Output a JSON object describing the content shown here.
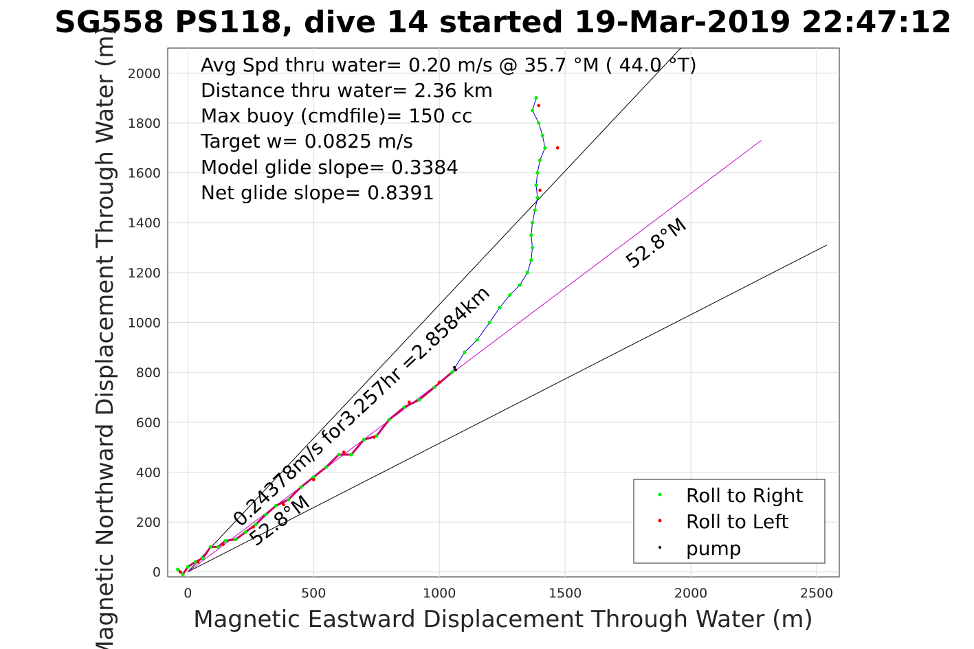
{
  "chart_data": {
    "type": "line",
    "title": "SG558 PS118, dive 14 started 19-Mar-2019 22:47:12",
    "xlabel": "Magnetic Eastward Displacement Through Water (m)",
    "ylabel": "Magnetic Northward Displacement Through Water (m)",
    "xlim": [
      -80,
      2590
    ],
    "ylim": [
      -20,
      2100
    ],
    "xticks": [
      0,
      500,
      1000,
      1500,
      2000,
      2500
    ],
    "yticks": [
      0,
      200,
      400,
      600,
      800,
      1000,
      1200,
      1400,
      1600,
      1800,
      2000
    ],
    "grid": true,
    "annotations": [
      "Avg Spd thru water=  0.20 m/s @  35.7 °M ( 44.0 °T)",
      "Distance thru water=  2.36 km",
      "Max buoy (cmdfile)= 150 cc",
      "Target w= 0.0825 m/s",
      "Model glide slope= 0.3384",
      "Net glide slope= 0.8391"
    ],
    "heading_labels": [
      "52.8°M",
      "52.8°M"
    ],
    "transit_label": "0.24378m/s for3.257hr =2.8584km",
    "reference_lines": [
      {
        "name": "course upper",
        "from": [
          0,
          0
        ],
        "to": [
          1960,
          2100
        ],
        "color": "#000000"
      },
      {
        "name": "course lower",
        "from": [
          0,
          0
        ],
        "to": [
          2540,
          1310
        ],
        "color": "#000000"
      },
      {
        "name": "course center",
        "from": [
          0,
          0
        ],
        "to": [
          2280,
          1730
        ],
        "color": "#cc00cc"
      }
    ],
    "series": [
      {
        "name": "Roll to Right",
        "color": "#00ee00",
        "marker": "dot",
        "points": [
          [
            -40,
            10
          ],
          [
            -20,
            -10
          ],
          [
            0,
            20
          ],
          [
            30,
            40
          ],
          [
            60,
            55
          ],
          [
            90,
            100
          ],
          [
            120,
            100
          ],
          [
            150,
            125
          ],
          [
            190,
            130
          ],
          [
            230,
            160
          ],
          [
            270,
            190
          ],
          [
            310,
            230
          ],
          [
            350,
            265
          ],
          [
            400,
            290
          ],
          [
            450,
            340
          ],
          [
            500,
            380
          ],
          [
            550,
            420
          ],
          [
            600,
            470
          ],
          [
            650,
            470
          ],
          [
            700,
            530
          ],
          [
            750,
            545
          ],
          [
            800,
            610
          ],
          [
            860,
            660
          ],
          [
            920,
            690
          ],
          [
            980,
            740
          ],
          [
            1050,
            800
          ],
          [
            1100,
            880
          ],
          [
            1150,
            930
          ],
          [
            1200,
            1000
          ],
          [
            1240,
            1060
          ],
          [
            1280,
            1110
          ],
          [
            1320,
            1150
          ],
          [
            1350,
            1200
          ],
          [
            1365,
            1250
          ],
          [
            1370,
            1300
          ],
          [
            1365,
            1350
          ],
          [
            1370,
            1400
          ],
          [
            1380,
            1450
          ],
          [
            1390,
            1500
          ],
          [
            1385,
            1550
          ],
          [
            1390,
            1600
          ],
          [
            1400,
            1650
          ],
          [
            1420,
            1700
          ],
          [
            1410,
            1750
          ],
          [
            1395,
            1800
          ],
          [
            1370,
            1850
          ],
          [
            1385,
            1900
          ]
        ]
      },
      {
        "name": "Roll to Left",
        "color": "#ff0000",
        "marker": "dot",
        "points": [
          [
            -30,
            0
          ],
          [
            40,
            40
          ],
          [
            140,
            110
          ],
          [
            260,
            180
          ],
          [
            380,
            270
          ],
          [
            500,
            370
          ],
          [
            620,
            480
          ],
          [
            740,
            540
          ],
          [
            880,
            680
          ],
          [
            1000,
            760
          ],
          [
            1400,
            1530
          ],
          [
            1470,
            1700
          ],
          [
            1395,
            1870
          ]
        ]
      },
      {
        "name": "pump",
        "color": "#000000",
        "marker": "dot",
        "points": [
          [
            1060,
            820
          ],
          [
            1065,
            810
          ]
        ]
      }
    ],
    "legend": {
      "position": "bottom-right",
      "entries": [
        "Roll to Right",
        "Roll to Left",
        "pump"
      ]
    }
  }
}
